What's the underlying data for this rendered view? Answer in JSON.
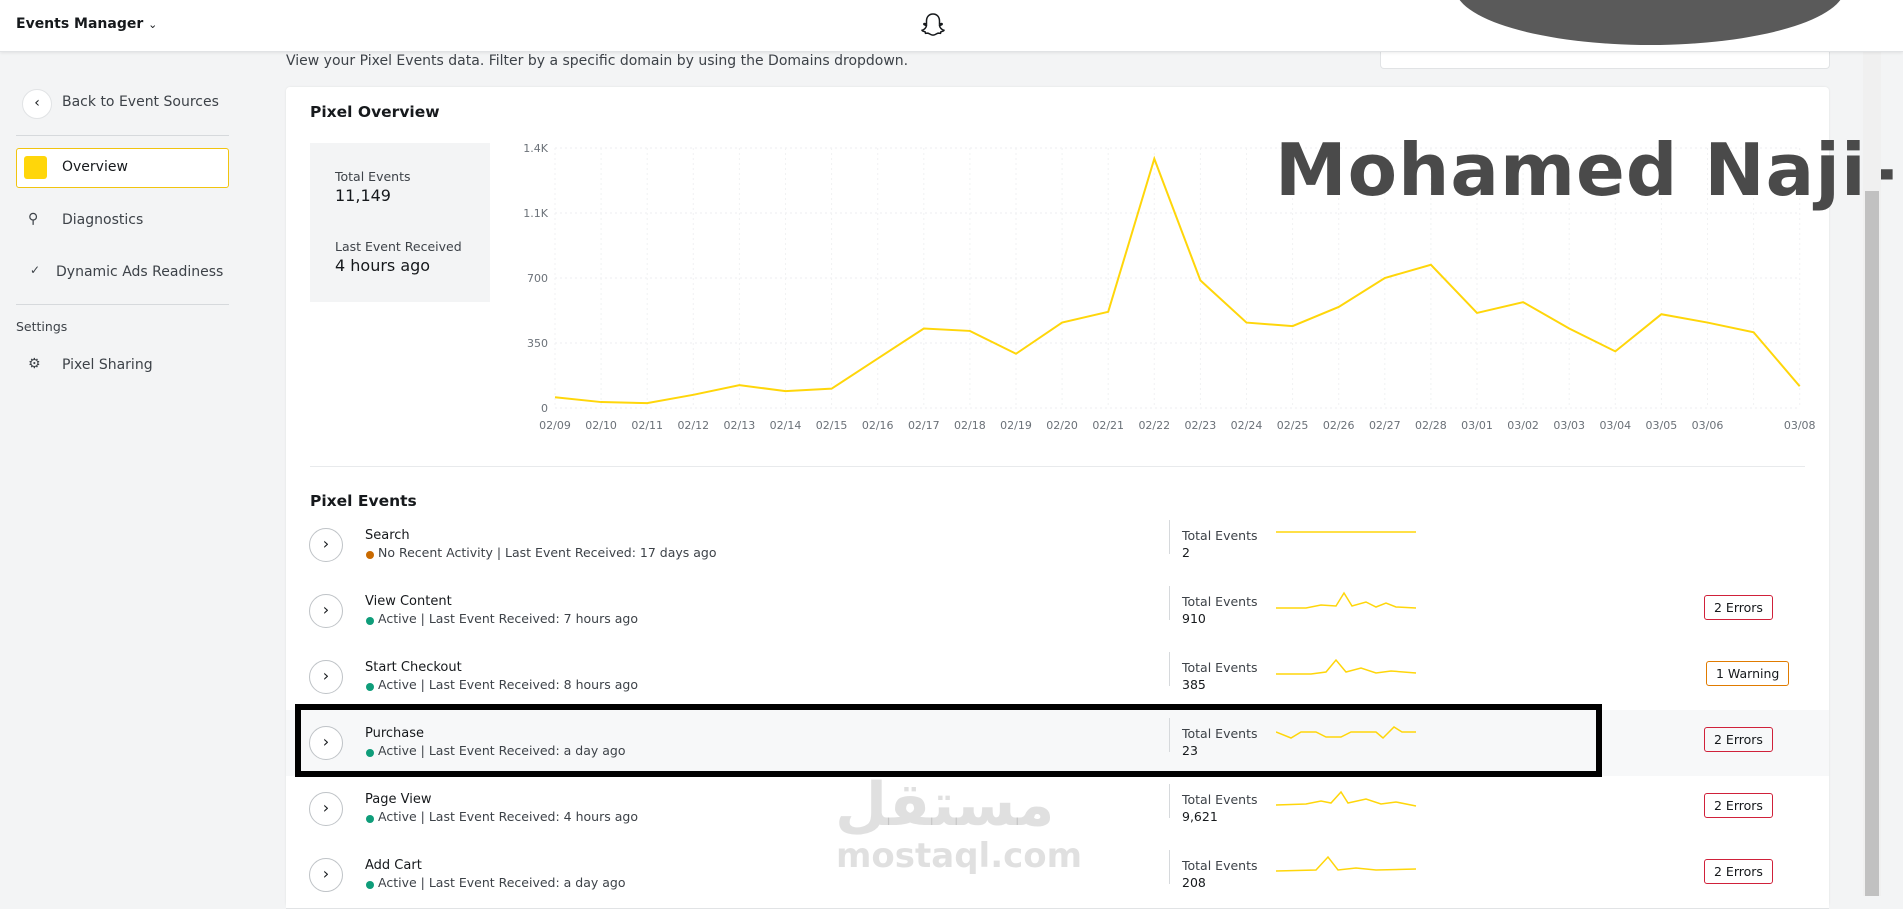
{
  "nav": {
    "app": "Events Manager"
  },
  "sidebar": {
    "back": "Back to Event Sources",
    "items": [
      "Overview",
      "Diagnostics",
      "Dynamic Ads Readiness"
    ],
    "settings_heading": "Settings",
    "settings_items": [
      "Pixel Sharing"
    ]
  },
  "header": {
    "description": "View your Pixel Events data. Filter by a specific domain by using the Domains dropdown."
  },
  "overview": {
    "title": "Pixel Overview",
    "stats": [
      {
        "label": "Total Events",
        "value": "11,149"
      },
      {
        "label": "Last Event Received",
        "value": "4 hours ago"
      }
    ]
  },
  "chart_data": {
    "type": "line",
    "color": "#ffd60a",
    "grid": true,
    "categories": [
      "02/09",
      "02/10",
      "02/11",
      "02/12",
      "02/13",
      "02/14",
      "02/15",
      "02/16",
      "02/17",
      "02/18",
      "02/19",
      "02/20",
      "02/21",
      "02/22",
      "02/23",
      "02/24",
      "02/25",
      "02/26",
      "02/27",
      "02/28",
      "03/01",
      "03/02",
      "03/03",
      "03/04",
      "03/05",
      "03/06",
      null,
      "03/08"
    ],
    "values": [
      58,
      32,
      26,
      71,
      123,
      91,
      104,
      266,
      428,
      415,
      292,
      460,
      518,
      1342,
      687,
      460,
      441,
      544,
      700,
      771,
      512,
      570,
      428,
      305,
      505,
      460,
      408,
      117
    ],
    "ylim": [
      0,
      1400
    ],
    "yticks": [
      0,
      350,
      700,
      {
        "value": 1050,
        "label": "1.1K"
      },
      {
        "value": 1400,
        "label": "1.4K"
      }
    ]
  },
  "events": {
    "title": "Pixel Events",
    "total_label": "Total Events",
    "rows": [
      {
        "name": "Search",
        "status": "No Recent Activity | Last Event Received: 17 days ago",
        "dot": "#c96a00",
        "count": "2"
      },
      {
        "name": "View Content",
        "status": "Active | Last Event Received: 7 hours ago",
        "dot": "#0f9d7a",
        "count": "910",
        "badge": "2 Errors",
        "badge_color": "#d0213a"
      },
      {
        "name": "Start Checkout",
        "status": "Active | Last Event Received: 8 hours ago",
        "dot": "#0f9d7a",
        "count": "385",
        "badge": "1 Warning",
        "badge_color": "#e07b00"
      },
      {
        "name": "Purchase",
        "status": "Active | Last Event Received: a day ago",
        "dot": "#0f9d7a",
        "count": "23",
        "badge": "2 Errors",
        "badge_color": "#d0213a"
      },
      {
        "name": "Page View",
        "status": "Active | Last Event Received: 4 hours ago",
        "dot": "#0f9d7a",
        "count": "9,621",
        "badge": "2 Errors",
        "badge_color": "#d0213a"
      },
      {
        "name": "Add Cart",
        "status": "Active | Last Event Received: a day ago",
        "dot": "#0f9d7a",
        "count": "208",
        "badge": "2 Errors",
        "badge_color": "#d0213a"
      }
    ]
  },
  "watermarks": [
    "Mohamed Naji-",
    "مستقل",
    "mostaql.com"
  ]
}
